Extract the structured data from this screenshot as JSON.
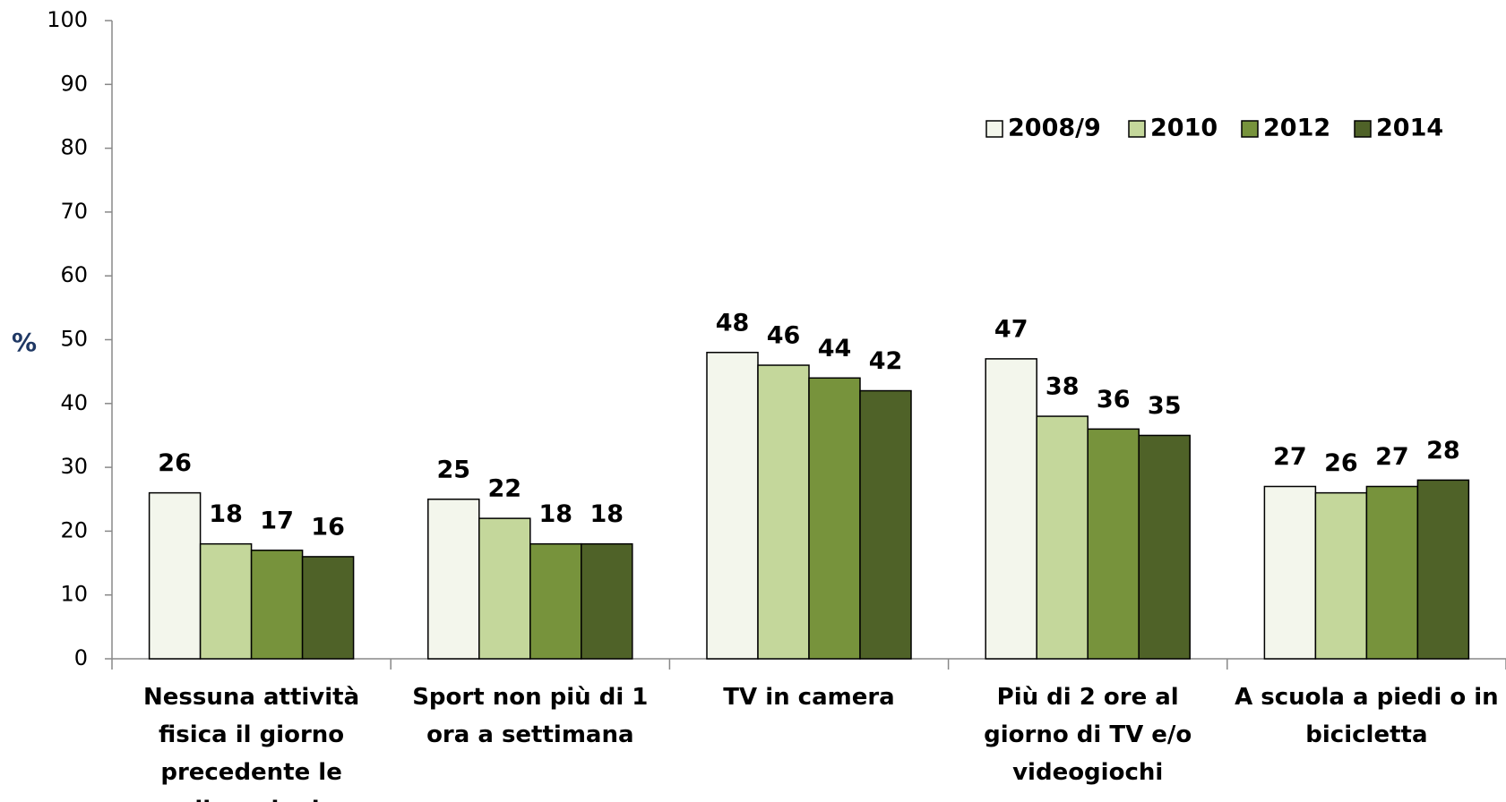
{
  "chart_data": {
    "type": "bar",
    "y_label": "%",
    "categories": [
      "Nessuna attività fisica il giorno precedente le rilevazioni",
      "Sport non più di 1 ora a settimana",
      "TV in camera",
      "Più di 2 ore al giorno di TV e/o videogiochi",
      "A scuola a piedi o in bicicletta"
    ],
    "series": [
      {
        "name": "2008/9",
        "color": "#f3f6ec",
        "values": [
          26,
          25,
          48,
          47,
          27
        ]
      },
      {
        "name": "2010",
        "color": "#c4d79b",
        "values": [
          18,
          22,
          46,
          38,
          26
        ]
      },
      {
        "name": "2012",
        "color": "#77933c",
        "values": [
          17,
          18,
          44,
          36,
          27
        ]
      },
      {
        "name": "2014",
        "color": "#4f6228",
        "values": [
          16,
          18,
          42,
          35,
          28
        ]
      }
    ],
    "ylim": [
      0,
      100
    ],
    "yticks": [
      0,
      10,
      20,
      30,
      40,
      50,
      60,
      70,
      80,
      90,
      100
    ],
    "legend": "upper right",
    "grid": false
  }
}
